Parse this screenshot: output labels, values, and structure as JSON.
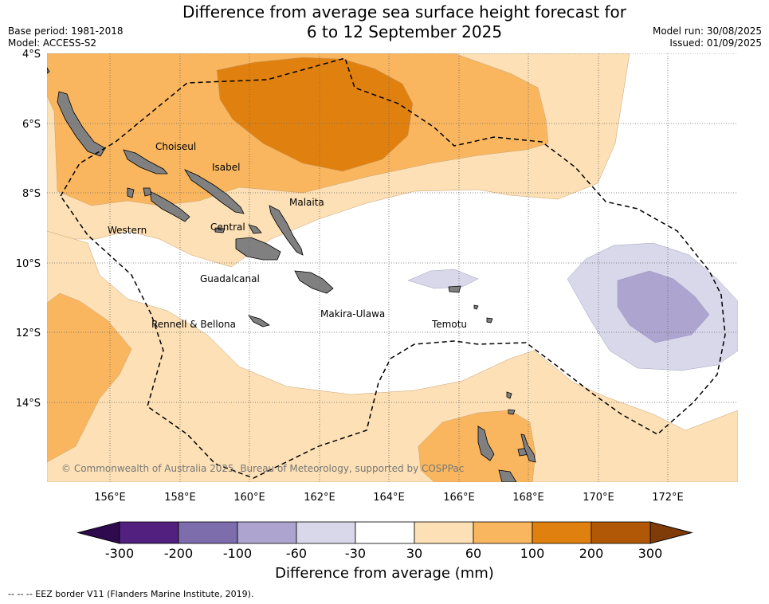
{
  "title_line1": "Difference from average sea surface height forecast for",
  "title_line2": "6 to 12 September 2025",
  "base_period": "Base period: 1981-2018",
  "model": "Model: ACCESS-S2",
  "model_run": "Model run: 30/08/2025",
  "issued": "Issued: 01/09/2025",
  "lat_labels": [
    "4°S",
    "6°S",
    "8°S",
    "10°S",
    "12°S",
    "14°S"
  ],
  "lon_labels": [
    "156°E",
    "158°E",
    "160°E",
    "162°E",
    "164°E",
    "166°E",
    "168°E",
    "170°E",
    "172°E"
  ],
  "region_labels": [
    "Choiseul",
    "Isabel",
    "Malaita",
    "Western",
    "Central",
    "Guadalcanal",
    "Makira-Ulawa",
    "Rennell & Bellona",
    "Temotu"
  ],
  "copyright": "© Commonwealth of Australia 2025, Bureau of Meteorology, supported by COSPPac",
  "colorbar": {
    "ticks": [
      "-300",
      "-200",
      "-100",
      "-60",
      "-30",
      "30",
      "60",
      "100",
      "200",
      "300"
    ],
    "colors": [
      "#52207e",
      "#7d6dac",
      "#ada5cf",
      "#d8d8ea",
      "#ffffff",
      "#fde0b5",
      "#f9b65f",
      "#e0810f",
      "#b15807"
    ],
    "low_extend_color": "#2f0a4f",
    "high_extend_color": "#7f3b08",
    "title": "Difference from average (mm)"
  },
  "legend_text": "-- -- -- EEZ border V11 (Flanders Marine Institute, 2019)."
}
